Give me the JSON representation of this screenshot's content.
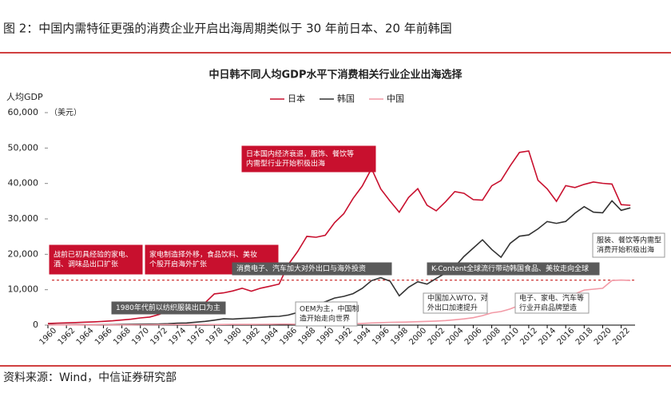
{
  "page_title": "图 2：中国内需特征更强的消费企业开启出海周期类似于 30 年前日本、20 年前韩国",
  "source": "资料来源：Wind，中信证券研究部",
  "chart_data": {
    "type": "line",
    "title": "中日韩不同人均GDP水平下消费相关行业企业出海选择",
    "y_label": "人均GDP",
    "y_unit": "（美元）",
    "x": [
      1960,
      1961,
      1962,
      1963,
      1964,
      1965,
      1966,
      1967,
      1968,
      1969,
      1970,
      1971,
      1972,
      1973,
      1974,
      1975,
      1976,
      1977,
      1978,
      1979,
      1980,
      1981,
      1982,
      1983,
      1984,
      1985,
      1986,
      1987,
      1988,
      1989,
      1990,
      1991,
      1992,
      1993,
      1994,
      1995,
      1996,
      1997,
      1998,
      1999,
      2000,
      2001,
      2002,
      2003,
      2004,
      2005,
      2006,
      2007,
      2008,
      2009,
      2010,
      2011,
      2012,
      2013,
      2014,
      2015,
      2016,
      2017,
      2018,
      2019,
      2020,
      2021,
      2022,
      2023
    ],
    "series": [
      {
        "name": "日本",
        "color": "#c8102e",
        "values": [
          479,
          564,
          634,
          718,
          835,
          919,
          1059,
          1229,
          1450,
          1669,
          2037,
          2272,
          2967,
          3997,
          4354,
          4659,
          5197,
          6335,
          8821,
          9105,
          9659,
          10421,
          9578,
          10425,
          10984,
          11585,
          17112,
          20745,
          25052,
          24813,
          25371,
          28915,
          31465,
          35766,
          39269,
          44198,
          38437,
          35022,
          31903,
          36027,
          38532,
          33846,
          32289,
          34808,
          37688,
          37218,
          35434,
          35275,
          39339,
          40855,
          44968,
          48760,
          49175,
          40898,
          38475,
          34961,
          39375,
          38834,
          39751,
          40416,
          40040,
          39827,
          34017,
          33834
        ]
      },
      {
        "name": "韩国",
        "color": "#333333",
        "values": [
          158,
          94,
          106,
          146,
          123,
          109,
          133,
          161,
          198,
          243,
          279,
          301,
          323,
          406,
          563,
          616,
          834,
          1055,
          1405,
          1783,
          1715,
          1883,
          1992,
          2199,
          2413,
          2482,
          2835,
          3555,
          4749,
          5817,
          6610,
          7637,
          8127,
          8885,
          10385,
          12565,
          13403,
          12398,
          8282,
          10672,
          12257,
          11561,
          13165,
          14673,
          16496,
          19403,
          21744,
          24086,
          21350,
          19144,
          23087,
          25096,
          25467,
          27182,
          29250,
          28737,
          29274,
          31601,
          33447,
          31902,
          31721,
          35126,
          32423,
          33121
        ]
      },
      {
        "name": "中国",
        "color": "#f29aa6",
        "values": [
          90,
          76,
          71,
          75,
          85,
          98,
          104,
          97,
          91,
          100,
          113,
          119,
          132,
          157,
          160,
          178,
          165,
          185,
          156,
          184,
          195,
          197,
          203,
          225,
          251,
          294,
          282,
          251,
          283,
          310,
          318,
          333,
          366,
          377,
          473,
          610,
          709,
          782,
          829,
          873,
          959,
          1053,
          1149,
          1289,
          1509,
          1753,
          2099,
          2694,
          3468,
          3832,
          4550,
          5614,
          6301,
          7020,
          7636,
          8016,
          8094,
          8817,
          9905,
          10144,
          10409,
          12618,
          12720,
          12614
        ]
      }
    ],
    "reference_line": {
      "value": 12700,
      "color": "#c00000",
      "dashed": true
    },
    "xlim": [
      1960,
      2023.5
    ],
    "xticks": [
      1960,
      1962,
      1964,
      1966,
      1968,
      1970,
      1972,
      1974,
      1976,
      1978,
      1980,
      1982,
      1984,
      1986,
      1988,
      1990,
      1992,
      1994,
      1996,
      1998,
      2000,
      2002,
      2004,
      2006,
      2008,
      2010,
      2012,
      2014,
      2016,
      2018,
      2020,
      2022
    ],
    "ylim": [
      0,
      60000
    ],
    "yticks": [
      0,
      {
        "value": 10000,
        "label": "10,000"
      },
      {
        "value": 20000,
        "label": "20,000"
      },
      {
        "value": 30000,
        "label": "30,000"
      },
      {
        "value": 40000,
        "label": "40,000"
      },
      {
        "value": 50000,
        "label": "50,000"
      },
      {
        "value": 60000,
        "label": "60,000"
      }
    ],
    "annotations": [
      {
        "style": "red",
        "lines": [
          "战前已初具经验的家电、",
          "酒、调味品出口扩张"
        ]
      },
      {
        "style": "red",
        "lines": [
          "家电制造择外移，食品饮料、美妆",
          "个股开启海外扩张"
        ]
      },
      {
        "style": "red",
        "lines": [
          "日本国内经济衰退，服饰、餐饮等",
          "内需型行业开始积极出海"
        ]
      },
      {
        "style": "gray",
        "lines": [
          "1980年代前以纺织服装出口为主"
        ]
      },
      {
        "style": "gray",
        "lines": [
          "消费电子、汽车加大对外出口与海外投资"
        ]
      },
      {
        "style": "gray",
        "lines": [
          "K-Content全球流行带动韩国食品、美妆走向全球"
        ]
      },
      {
        "style": "white",
        "lines": [
          "OEM为主，中国制",
          "造开始走向世界"
        ]
      },
      {
        "style": "white",
        "lines": [
          "中国加入WTO，对",
          "外出口加速提升"
        ]
      },
      {
        "style": "white",
        "lines": [
          "电子、家电、汽车等",
          "行业开启品牌塑造"
        ]
      },
      {
        "style": "white",
        "lines": [
          "服装、餐饮等内需型",
          "消费开始积极出海"
        ]
      }
    ]
  }
}
